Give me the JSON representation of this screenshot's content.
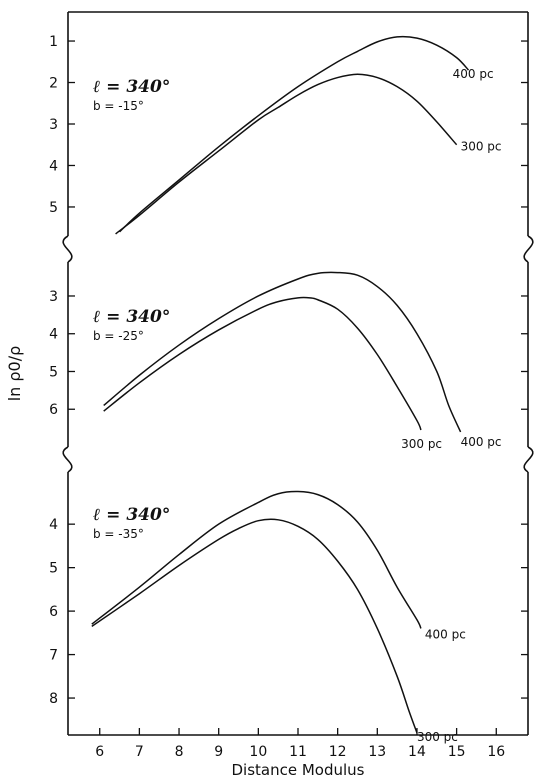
{
  "chart_data": {
    "type": "line",
    "xlabel": "Distance Modulus",
    "ylabel": "ln ρ0/ρ",
    "x_ticks": [
      6,
      7,
      8,
      9,
      10,
      11,
      12,
      13,
      14,
      15,
      16
    ],
    "xlim": [
      5.2,
      16.8
    ],
    "y_inverted": true,
    "panels": [
      {
        "l": "340°",
        "b": "-15°",
        "l_label": "ℓ = 340°",
        "b_label": "b = -15°",
        "y_ticks": [
          1,
          2,
          3,
          4,
          5
        ],
        "ylim": [
          0.3,
          5.7
        ],
        "series": [
          {
            "name": "400 pc",
            "x": [
              6.5,
              7,
              8,
              9,
              10,
              11,
              12,
              12.5,
              13,
              13.5,
              14,
              14.5,
              15,
              15.3
            ],
            "y": [
              5.6,
              5.15,
              4.35,
              3.55,
              2.8,
              2.1,
              1.5,
              1.25,
              1.02,
              0.9,
              0.93,
              1.1,
              1.4,
              1.7
            ]
          },
          {
            "name": "300 pc",
            "x": [
              6.4,
              7,
              8,
              9,
              10,
              10.5,
              11,
              11.5,
              12,
              12.5,
              13,
              13.5,
              14,
              14.5,
              15
            ],
            "y": [
              5.65,
              5.2,
              4.4,
              3.65,
              2.9,
              2.6,
              2.3,
              2.05,
              1.88,
              1.8,
              1.88,
              2.1,
              2.45,
              2.95,
              3.5
            ]
          }
        ],
        "label_x": [
          14.9,
          15.1
        ]
      },
      {
        "l": "340°",
        "b": "-25°",
        "l_label": "ℓ = 340°",
        "b_label": "b = -25°",
        "y_ticks": [
          3,
          4,
          5,
          6
        ],
        "ylim": [
          2.1,
          7.0
        ],
        "series": [
          {
            "name": "400 pc",
            "x": [
              6.1,
              7,
              8,
              9,
              10,
              11,
              11.5,
              12,
              12.5,
              13,
              13.5,
              14,
              14.5,
              14.8,
              15.1
            ],
            "y": [
              5.9,
              5.1,
              4.3,
              3.6,
              3.0,
              2.55,
              2.4,
              2.38,
              2.45,
              2.75,
              3.25,
              4.0,
              5.0,
              5.9,
              6.6
            ]
          },
          {
            "name": "300 pc",
            "x": [
              6.1,
              7,
              8,
              9,
              10,
              10.5,
              11,
              11.3,
              11.5,
              12,
              12.5,
              13,
              13.5,
              14,
              14.1
            ],
            "y": [
              6.05,
              5.3,
              4.55,
              3.9,
              3.35,
              3.15,
              3.05,
              3.05,
              3.1,
              3.35,
              3.85,
              4.55,
              5.4,
              6.3,
              6.55
            ]
          }
        ],
        "label_x": [
          15.1,
          13.6
        ]
      },
      {
        "l": "340°",
        "b": "-35°",
        "l_label": "ℓ = 340°",
        "b_label": "b = -35°",
        "y_ticks": [
          4,
          5,
          6,
          7,
          8
        ],
        "ylim": [
          2.8,
          8.85
        ],
        "series": [
          {
            "name": "400 pc",
            "x": [
              5.8,
              7,
              8,
              9,
              10,
              10.5,
              11,
              11.5,
              12,
              12.5,
              13,
              13.5,
              14,
              14.1
            ],
            "y": [
              6.3,
              5.45,
              4.7,
              4.0,
              3.5,
              3.3,
              3.25,
              3.32,
              3.55,
              3.95,
              4.6,
              5.45,
              6.2,
              6.4
            ]
          },
          {
            "name": "300 pc",
            "x": [
              5.8,
              7,
              8,
              9,
              9.5,
              10,
              10.5,
              11,
              11.5,
              12,
              12.5,
              13,
              13.5,
              13.8,
              14
            ],
            "y": [
              6.35,
              5.6,
              4.95,
              4.35,
              4.1,
              3.92,
              3.9,
              4.05,
              4.35,
              4.85,
              5.5,
              6.4,
              7.5,
              8.3,
              8.8
            ]
          }
        ],
        "label_x": [
          14.2,
          14.0
        ]
      }
    ]
  }
}
